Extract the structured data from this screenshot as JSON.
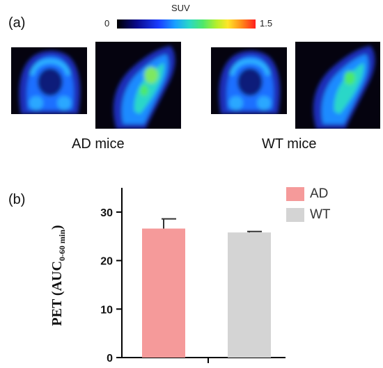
{
  "figure": {
    "panel_a_label": "(a)",
    "panel_b_label": "(b)",
    "colorbar": {
      "title": "SUV",
      "min_label": "0",
      "max_label": "1.5"
    },
    "group_labels": [
      "AD mice",
      "WT mice"
    ]
  },
  "chart_data": {
    "type": "bar",
    "categories": [
      "AD",
      "WT"
    ],
    "values": [
      26.6,
      25.8
    ],
    "errors": [
      2.0,
      0.2
    ],
    "colors": [
      "#f59a9a",
      "#d4d4d4"
    ],
    "ylabel_main": "PET (AUC",
    "ylabel_sub": "0-60 min",
    "ylabel_close": ")",
    "ylim": [
      0,
      35
    ],
    "yticks": [
      "0",
      "10",
      "20",
      "30"
    ],
    "legend": [
      {
        "label": "AD",
        "color": "#f59a9a"
      },
      {
        "label": "WT",
        "color": "#d4d4d4"
      }
    ],
    "legend_position": "top-right",
    "grid": false
  }
}
